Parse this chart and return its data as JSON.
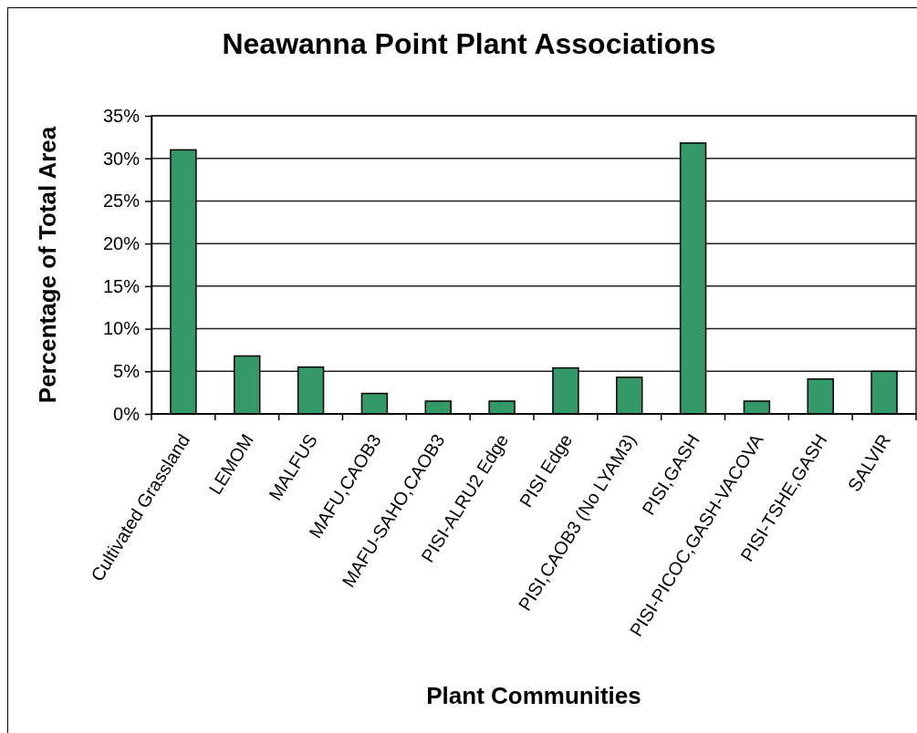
{
  "chart_data": {
    "type": "bar",
    "title": "Neawanna Point Plant Associations",
    "xlabel": "Plant Communities",
    "ylabel": "Percentage of Total Area",
    "categories": [
      "Cultivated Grassland",
      "LEMOM",
      "MALFUS",
      "MAFU,CAOB3",
      "MAFU-SAHO,CAOB3",
      "PISI-ALRU2 Edge",
      "PISI Edge",
      "PISI,CAOB3 (No LYAM3)",
      "PISI,GASH",
      "PISI-PICOC,GASH-VACOVA",
      "PISI-TSHE,GASH",
      "SALVIR"
    ],
    "values": [
      31.0,
      6.8,
      5.5,
      2.4,
      1.5,
      1.5,
      5.4,
      4.3,
      31.8,
      1.5,
      4.1,
      5.0
    ],
    "color": "#339966",
    "ylim": [
      0,
      35
    ],
    "yticks": [
      {
        "value": 0,
        "label": "0%"
      },
      {
        "value": 5,
        "label": "5%"
      },
      {
        "value": 10,
        "label": "10%"
      },
      {
        "value": 15,
        "label": "15%"
      },
      {
        "value": 20,
        "label": "20%"
      },
      {
        "value": 25,
        "label": "25%"
      },
      {
        "value": 30,
        "label": "30%"
      },
      {
        "value": 35,
        "label": "35%"
      }
    ],
    "grid": "y"
  }
}
